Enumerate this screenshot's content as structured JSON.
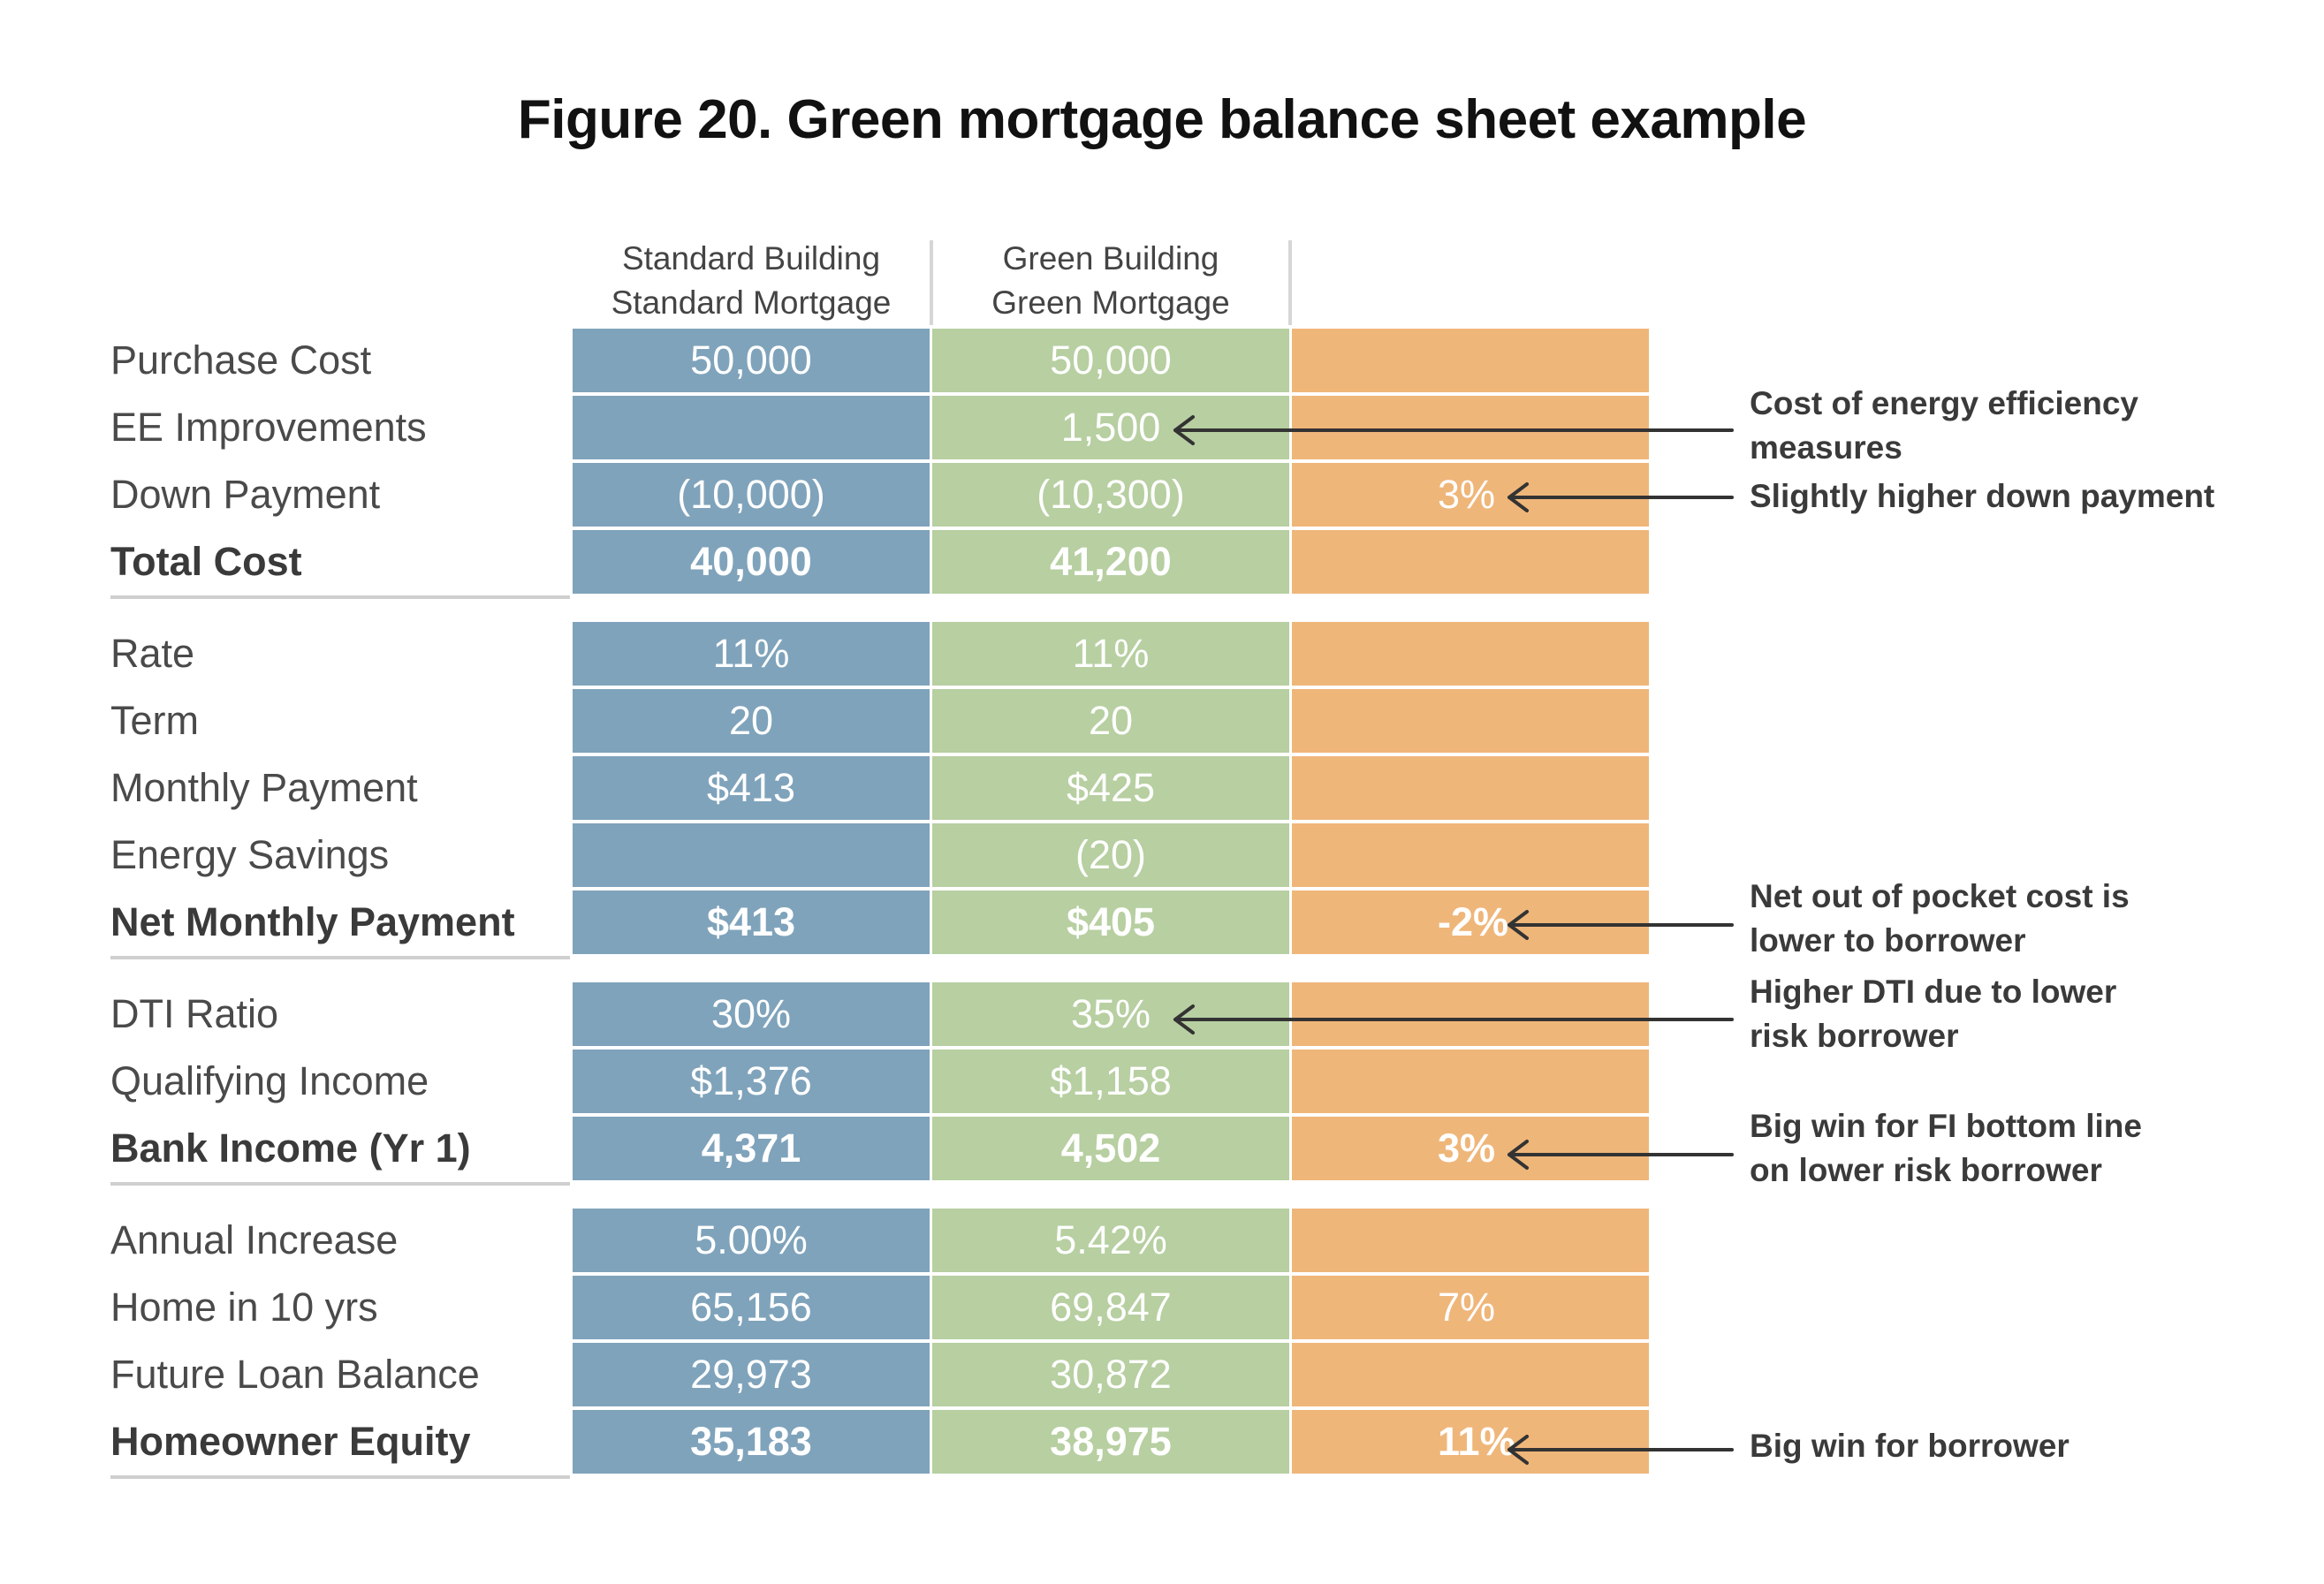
{
  "title": "Figure 20. Green mortgage balance sheet example",
  "columns": {
    "standard": [
      "Standard Building",
      "Standard Mortgage"
    ],
    "green": [
      "Green Building",
      "Green Mortgage"
    ]
  },
  "rows": [
    {
      "label": "Purchase Cost",
      "bold": false,
      "standard": "50,000",
      "green": "50,000",
      "diff": ""
    },
    {
      "label": "EE Improvements",
      "bold": false,
      "standard": "",
      "green": "1,500",
      "diff": ""
    },
    {
      "label": "Down Payment",
      "bold": false,
      "standard": "(10,000)",
      "green": "(10,300)",
      "diff": "3%"
    },
    {
      "label": "Total Cost",
      "bold": true,
      "standard": "40,000",
      "green": "41,200",
      "diff": ""
    },
    {
      "label": "Rate",
      "bold": false,
      "standard": "11%",
      "green": "11%",
      "diff": ""
    },
    {
      "label": "Term",
      "bold": false,
      "standard": "20",
      "green": "20",
      "diff": ""
    },
    {
      "label": "Monthly Payment",
      "bold": false,
      "standard": "$413",
      "green": "$425",
      "diff": ""
    },
    {
      "label": "Energy Savings",
      "bold": false,
      "standard": "",
      "green": "(20)",
      "diff": ""
    },
    {
      "label": "Net Monthly Payment",
      "bold": true,
      "standard": "$413",
      "green": "$405",
      "diff": "-2%"
    },
    {
      "label": "DTI Ratio",
      "bold": false,
      "standard": "30%",
      "green": "35%",
      "diff": ""
    },
    {
      "label": "Qualifying Income",
      "bold": false,
      "standard": "$1,376",
      "green": "$1,158",
      "diff": ""
    },
    {
      "label": "Bank Income (Yr 1)",
      "bold": true,
      "standard": "4,371",
      "green": "4,502",
      "diff": "3%"
    },
    {
      "label": "Annual Increase",
      "bold": false,
      "standard": "5.00%",
      "green": "5.42%",
      "diff": ""
    },
    {
      "label": "Home in 10 yrs",
      "bold": false,
      "standard": "65,156",
      "green": "69,847",
      "diff": "7%"
    },
    {
      "label": "Future Loan Balance",
      "bold": false,
      "standard": "29,973",
      "green": "30,872",
      "diff": ""
    },
    {
      "label": "Homeowner Equity",
      "bold": true,
      "standard": "35,183",
      "green": "38,975",
      "diff": "11%"
    }
  ],
  "annotations": [
    [
      "Cost of energy efficiency",
      "measures"
    ],
    [
      "Slightly higher down payment"
    ],
    [
      "Net out of pocket cost is",
      "lower to borrower"
    ],
    [
      "Higher DTI due to lower",
      "risk borrower"
    ],
    [
      "Big win for FI bottom line",
      "on lower risk borrower"
    ],
    [
      "Big win for borrower"
    ]
  ],
  "colors": {
    "standard": "#7fa3bb",
    "green": "#b7cfa1",
    "difference": "#efb67a"
  }
}
